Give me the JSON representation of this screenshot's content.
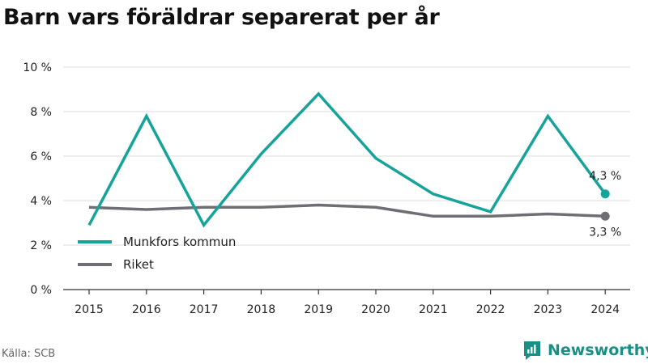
{
  "title": "Barn vars föräldrar separerat per år",
  "source": "Källa: SCB",
  "brand": {
    "name": "Newsworthy",
    "icon": "newsworthy-logo-icon",
    "color": "#1a8f85"
  },
  "chart_data": {
    "type": "line",
    "title": "Barn vars föräldrar separerat per år",
    "xlabel": "",
    "ylabel": "",
    "x": [
      "2015",
      "2016",
      "2017",
      "2018",
      "2019",
      "2020",
      "2021",
      "2022",
      "2023",
      "2024"
    ],
    "ylim": [
      0,
      10
    ],
    "yticks": [
      0,
      2,
      4,
      6,
      8,
      10
    ],
    "ytick_labels": [
      "0 %",
      "2 %",
      "4 %",
      "6 %",
      "8 %",
      "10 %"
    ],
    "grid": true,
    "legend_position": "bottom-left",
    "series": [
      {
        "name": "Munkfors kommun",
        "color": "#16a399",
        "values": [
          2.9,
          7.8,
          2.9,
          6.1,
          8.8,
          5.9,
          4.3,
          3.5,
          7.8,
          4.3
        ],
        "end_label": "4,3 %"
      },
      {
        "name": "Riket",
        "color": "#6e6e74",
        "values": [
          3.7,
          3.6,
          3.7,
          3.7,
          3.8,
          3.7,
          3.3,
          3.3,
          3.4,
          3.3
        ],
        "end_label": "3,3 %"
      }
    ]
  }
}
